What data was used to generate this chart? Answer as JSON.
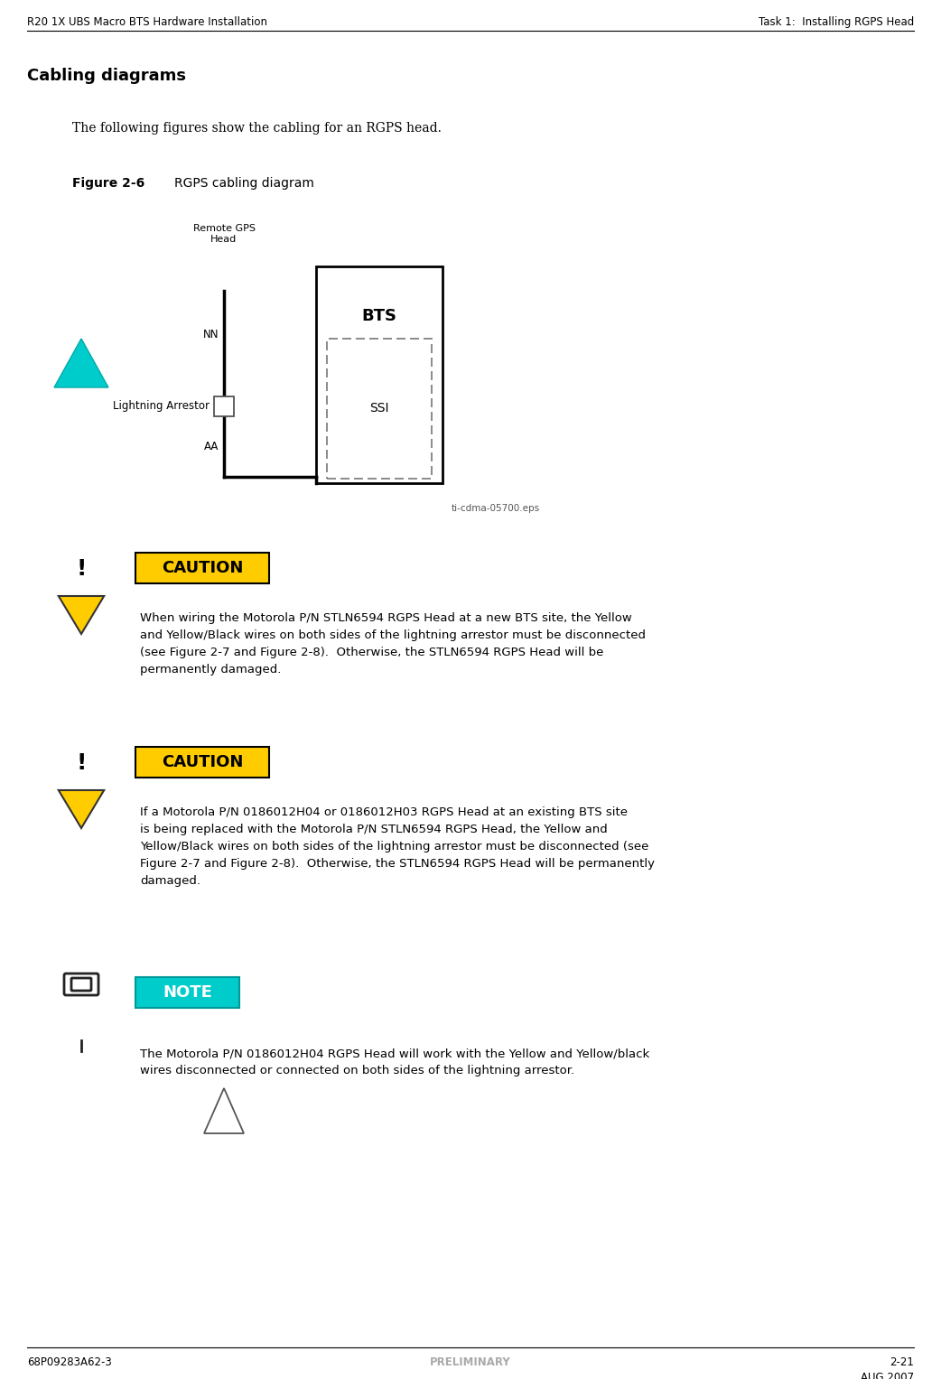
{
  "header_left": "R20 1X UBS Macro BTS Hardware Installation",
  "header_right": "Task 1:  Installing RGPS Head",
  "footer_left": "68P09283A62-3",
  "footer_center": "PRELIMINARY",
  "footer_right_top": "2-21",
  "footer_right_bottom": "AUG 2007",
  "section_title": "Cabling diagrams",
  "intro_text": "The following figures show the cabling for an RGPS head.",
  "figure_label_bold": "Figure 2-6",
  "figure_label_normal": "RGPS cabling diagram",
  "diagram_label_remote_gps_1": "Remote GPS",
  "diagram_label_remote_gps_2": "Head",
  "diagram_label_nn": "NN",
  "diagram_label_lightning": "Lightning Arrestor",
  "diagram_label_aa": "AA",
  "diagram_label_bts": "BTS",
  "diagram_label_ssi": "SSI",
  "diagram_eps": "ti-cdma-05700.eps",
  "caution_label": "CAUTION",
  "note_label": "NOTE",
  "caution1_lines": [
    "When wiring the Motorola P/N STLN6594 RGPS Head at a new BTS site, the Yellow",
    "and Yellow/Black wires on both sides of the lightning arrestor must be disconnected",
    "(see Figure 2-7 and Figure 2-8).  Otherwise, the STLN6594 RGPS Head will be",
    "permanently damaged."
  ],
  "caution2_lines": [
    "If a Motorola P/N 0186012H04 or 0186012H03 RGPS Head at an existing BTS site",
    "is being replaced with the Motorola P/N STLN6594 RGPS Head, the Yellow and",
    "Yellow/Black wires on both sides of the lightning arrestor must be disconnected (see",
    "Figure 2-7 and Figure 2-8).  Otherwise, the STLN6594 RGPS Head will be permanently",
    "damaged."
  ],
  "note_lines": [
    "The Motorola P/N 0186012H04 RGPS Head will work with the Yellow and Yellow/black",
    "wires disconnected or connected on both sides of the lightning arrestor."
  ],
  "bg_color": "#ffffff",
  "text_color": "#000000",
  "link_color": "#4040ff",
  "caution_bg": "#ffcc00",
  "note_bg": "#00cccc",
  "note_text_color": "#ffffff",
  "header_line_color": "#000000",
  "footer_line_color": "#000000",
  "footer_center_color": "#aaaaaa"
}
